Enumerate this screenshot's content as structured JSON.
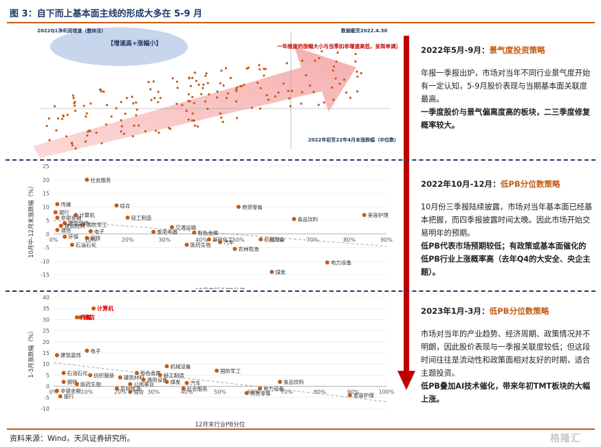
{
  "figure_title": "图 3：自下而上基本面主线的形成大多在 5-9 月",
  "source": "资料来源：Wind，天风证券研究所。",
  "watermark": "格隆汇",
  "top_chart": {
    "ylabel": "2022Q1净利润增速（整体法）",
    "xlabel": "2022年初至22年4月末涨跌幅（中位数）",
    "date_note": "数据截至2022.4.30",
    "ellipse_label": "【增速高+涨幅小】",
    "arrow_label": "一年维度的涨幅大小与当季扣非增速高低，呈现单调正相关关系"
  },
  "panels": [
    {
      "period": "2022年5月-9月：",
      "strategy": "景气度投资策略",
      "body": "年报一季报出炉，市场对当年不同行业景气度开始有一定认知，5-9月股价表现与当期基本面关联度最高。",
      "bold": "一季度股价与景气偏离度高的板块，二三季度修复概率较大。"
    },
    {
      "period": "2022年10月-12月：",
      "strategy": "低PB分位数策略",
      "body": "10月份三季报陆续披露，市场对当年基本面已经基本把握，而四季报披露时间太晚。因此市场开始交易明年的预期。",
      "bold": "低PB代表市场预期较低；有政策或基本面催化的低PB行业上涨概率高（去年Q4的大安全、央企主题）。"
    },
    {
      "period": "2023年1月-3月：",
      "strategy": "低PB分位数策略",
      "body": "市场对当年的产业趋势、经济周期、政策情况并不明朗，因此股价表现与一季报关联度较低；但这段时间往往是流动性和政策面相对友好的时期，适合主题投资。",
      "bold": "低PB叠加AI技术催化，带来年初TMT板块的大幅上涨。"
    }
  ],
  "chart_data": [
    {
      "type": "scatter",
      "xlabel": "10月中行业PB分位",
      "ylabel": "10月中-12月末涨跌幅（%）",
      "xlim": [
        0,
        90
      ],
      "ylim": [
        -15,
        25
      ],
      "xticks": [
        "0%",
        "10%",
        "20%",
        "30%",
        "40%",
        "50%",
        "60%",
        "70%",
        "80%",
        "90%"
      ],
      "yticks": [
        25,
        20,
        15,
        10,
        5,
        0,
        -5,
        -10,
        -15
      ],
      "points": [
        {
          "label": "社会服务",
          "x": 9,
          "y": 20
        },
        {
          "label": "传媒",
          "x": 1,
          "y": 11
        },
        {
          "label": "综合",
          "x": 17,
          "y": 10.5
        },
        {
          "label": "商贸零售",
          "x": 50,
          "y": 10
        },
        {
          "label": "美容护理",
          "x": 84,
          "y": 7
        },
        {
          "label": "银行",
          "x": 0.5,
          "y": 8
        },
        {
          "label": "计算机",
          "x": 6,
          "y": 7
        },
        {
          "label": "非银金融",
          "x": 1,
          "y": 6
        },
        {
          "label": "轻工制造",
          "x": 20,
          "y": 6
        },
        {
          "label": "食品饮料",
          "x": 65,
          "y": 5.5
        },
        {
          "label": "建筑装饰",
          "x": 3,
          "y": 4
        },
        {
          "label": "国防军工",
          "x": 8,
          "y": 3.5
        },
        {
          "label": "建筑材料",
          "x": 2,
          "y": 3
        },
        {
          "label": "交通运输",
          "x": 32,
          "y": 2.5
        },
        {
          "label": "通信",
          "x": 1,
          "y": 1.5
        },
        {
          "label": "电子",
          "x": 10,
          "y": 1
        },
        {
          "label": "家用电器",
          "x": 27,
          "y": 0.8
        },
        {
          "label": "有色金属",
          "x": 38,
          "y": 0.5
        },
        {
          "label": "环保",
          "x": 3,
          "y": -1
        },
        {
          "label": "钢铁",
          "x": 9,
          "y": -1.5
        },
        {
          "label": "石油石化",
          "x": 5,
          "y": -4
        },
        {
          "label": "基础化工",
          "x": 42,
          "y": -2
        },
        {
          "label": "机械设备",
          "x": 56,
          "y": -2
        },
        {
          "label": "汽车",
          "x": 45,
          "y": -3
        },
        {
          "label": "医药生物",
          "x": 36,
          "y": -4
        },
        {
          "label": "农林牧渔",
          "x": 49,
          "y": -5.5
        },
        {
          "label": "电力设备",
          "x": 74,
          "y": -10.5
        },
        {
          "label": "煤炭",
          "x": 59,
          "y": -14
        }
      ]
    },
    {
      "type": "scatter",
      "xlabel": "12月末行业PB分位",
      "ylabel": "1-3月涨跌幅（%）",
      "xlim": [
        0,
        100
      ],
      "ylim": [
        -10,
        40
      ],
      "xticks": [
        "0%",
        "10%",
        "20%",
        "30%",
        "40%",
        "50%",
        "60%",
        "70%",
        "80%",
        "90%",
        "100%"
      ],
      "yticks": [
        40,
        35,
        30,
        25,
        20,
        15,
        10,
        5,
        0,
        -5,
        -10
      ],
      "points": [
        {
          "label": "计算机",
          "x": 12,
          "y": 35,
          "highlight": true
        },
        {
          "label": "通信",
          "x": 8,
          "y": 31,
          "highlight": true
        },
        {
          "label": "传媒",
          "x": 7,
          "y": 31,
          "highlight": true
        },
        {
          "label": "电子",
          "x": 10,
          "y": 16
        },
        {
          "label": "建筑装饰",
          "x": 1,
          "y": 14
        },
        {
          "label": "机械设备",
          "x": 34,
          "y": 9
        },
        {
          "label": "国防军工",
          "x": 49,
          "y": 7
        },
        {
          "label": "石油石化",
          "x": 3,
          "y": 6
        },
        {
          "label": "纺织服装",
          "x": 11,
          "y": 5
        },
        {
          "label": "有色金属",
          "x": 25,
          "y": 6
        },
        {
          "label": "轻工制造",
          "x": 32,
          "y": 5
        },
        {
          "label": "建筑材料",
          "x": 20,
          "y": 4
        },
        {
          "label": "通用设备",
          "x": 27,
          "y": 3
        },
        {
          "label": "食品饮料",
          "x": 68,
          "y": 2
        },
        {
          "label": "汽车",
          "x": 40,
          "y": 1.5
        },
        {
          "label": "公用事业",
          "x": 23,
          "y": 1
        },
        {
          "label": "煤炭",
          "x": 34,
          "y": 2
        },
        {
          "label": "钢铁",
          "x": 3,
          "y": 2
        },
        {
          "label": "医药生物",
          "x": 7,
          "y": 1
        },
        {
          "label": "农林牧渔",
          "x": 19,
          "y": -1
        },
        {
          "label": "社会服务",
          "x": 39,
          "y": -1
        },
        {
          "label": "电力设备",
          "x": 62,
          "y": -1
        },
        {
          "label": "非银金融",
          "x": 1,
          "y": -2
        },
        {
          "label": "综合",
          "x": 23,
          "y": -2.5
        },
        {
          "label": "商贸零售",
          "x": 58,
          "y": -3
        },
        {
          "label": "美容护理",
          "x": 89,
          "y": -4
        },
        {
          "label": "银行",
          "x": 2,
          "y": -4.5
        }
      ]
    }
  ]
}
